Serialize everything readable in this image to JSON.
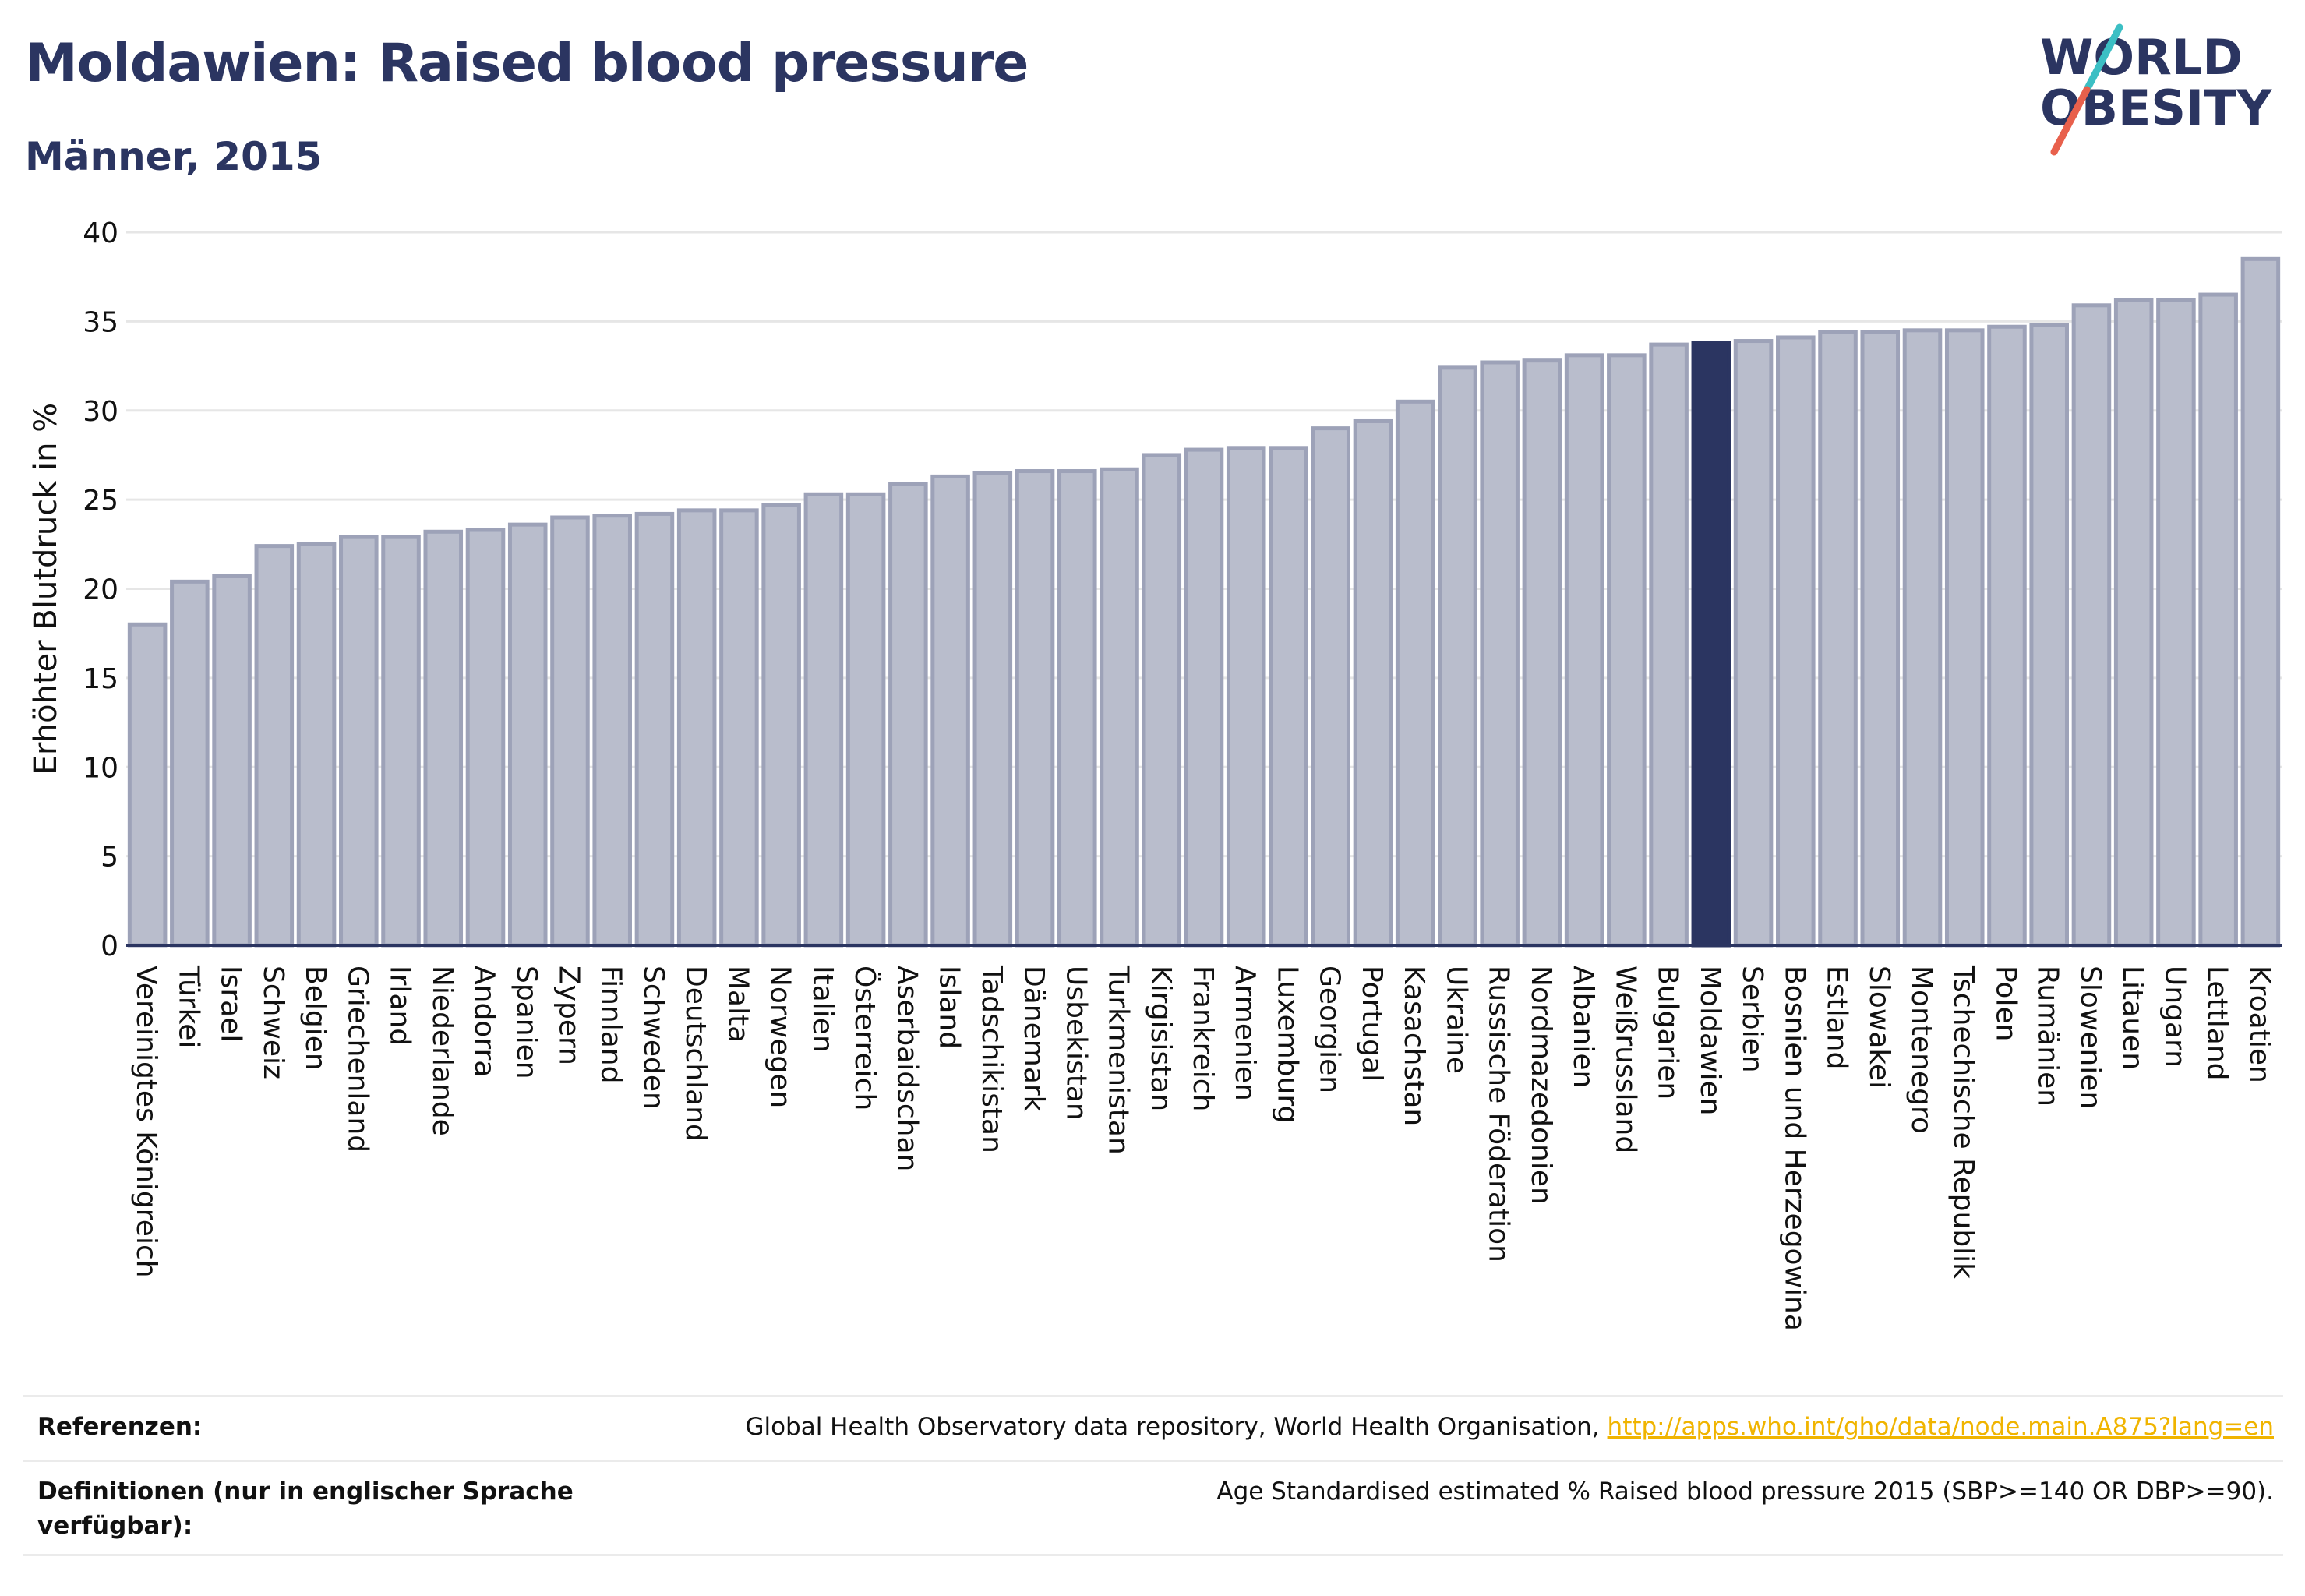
{
  "header": {
    "title": "Moldawien: Raised blood pressure",
    "subtitle": "Männer, 2015"
  },
  "logo": {
    "line1": "WORLD",
    "line2": "OBESITY"
  },
  "chart_data": {
    "type": "bar",
    "ylabel": "Erhöhter Blutdruck in %",
    "ylim": [
      0,
      40
    ],
    "yticks": [
      0,
      5,
      10,
      15,
      20,
      25,
      30,
      35,
      40
    ],
    "grid": true,
    "highlight": "Moldawien",
    "colors": {
      "bar": "#b9bdcc",
      "bar_edge": "#9da2b8",
      "highlight": "#2b3561",
      "axis": "#2b3561",
      "grid": "#e6e6e6"
    },
    "categories": [
      "Vereinigtes Königreich",
      "Türkei",
      "Israel",
      "Schweiz",
      "Belgien",
      "Griechenland",
      "Irland",
      "Niederlande",
      "Andorra",
      "Spanien",
      "Zypern",
      "Finnland",
      "Schweden",
      "Deutschland",
      "Malta",
      "Norwegen",
      "Italien",
      "Österreich",
      "Aserbaidschan",
      "Island",
      "Tadschikistan",
      "Dänemark",
      "Usbekistan",
      "Turkmenistan",
      "Kirgisistan",
      "Frankreich",
      "Armenien",
      "Luxemburg",
      "Georgien",
      "Portugal",
      "Kasachstan",
      "Ukraine",
      "Russische Föderation",
      "Nordmazedonien",
      "Albanien",
      "Weißrussland",
      "Bulgarien",
      "Moldawien",
      "Serbien",
      "Bosnien und Herzegowina",
      "Estland",
      "Slowakei",
      "Montenegro",
      "Tschechische Republik",
      "Polen",
      "Rumänien",
      "Slowenien",
      "Litauen",
      "Ungarn",
      "Lettland",
      "Kroatien"
    ],
    "values": [
      18.0,
      20.4,
      20.7,
      22.4,
      22.5,
      22.9,
      22.9,
      23.2,
      23.3,
      23.6,
      24.0,
      24.1,
      24.2,
      24.4,
      24.4,
      24.7,
      25.3,
      25.3,
      25.9,
      26.3,
      26.5,
      26.6,
      26.6,
      26.7,
      27.5,
      27.8,
      27.9,
      27.9,
      29.0,
      29.4,
      30.5,
      32.4,
      32.7,
      32.8,
      33.1,
      33.1,
      33.7,
      33.8,
      33.9,
      34.1,
      34.4,
      34.4,
      34.5,
      34.5,
      34.7,
      34.8,
      35.9,
      36.2,
      36.2,
      36.5,
      38.5
    ]
  },
  "footer": {
    "references_label": "Referenzen:",
    "references_text": "Global Health Observatory data repository, World Health Organisation, ",
    "references_link": "http://apps.who.int/gho/data/node.main.A875?lang=en",
    "definitions_label": "Definitionen (nur in englischer Sprache verfügbar):",
    "definitions_text": "Age Standardised estimated % Raised blood pressure 2015 (SBP>=140 OR DBP>=90)."
  }
}
